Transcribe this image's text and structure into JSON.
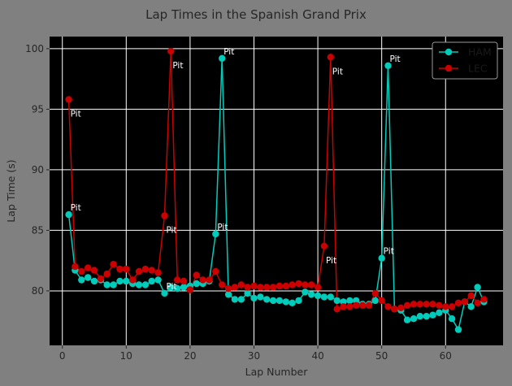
{
  "chart_data": {
    "type": "line",
    "title": "Lap Times in the Spanish Grand Prix",
    "xlabel": "Lap Number",
    "ylabel": "Lap Time (s)",
    "xlim": [
      -2,
      69
    ],
    "ylim": [
      75.5,
      101
    ],
    "xticks": [
      0,
      10,
      20,
      30,
      40,
      50,
      60
    ],
    "yticks": [
      80,
      85,
      90,
      95,
      100
    ],
    "grid": true,
    "legend_position": "top-right",
    "annotation_text": "Pit",
    "series": [
      {
        "name": "HAM",
        "color": "#00ccbb",
        "x": [
          1,
          2,
          3,
          4,
          5,
          6,
          7,
          8,
          9,
          10,
          11,
          12,
          13,
          14,
          15,
          16,
          17,
          18,
          19,
          20,
          21,
          22,
          23,
          24,
          25,
          26,
          27,
          28,
          29,
          30,
          31,
          32,
          33,
          34,
          35,
          36,
          37,
          38,
          39,
          40,
          41,
          42,
          43,
          44,
          45,
          46,
          47,
          48,
          49,
          50,
          51,
          52,
          53,
          54,
          55,
          56,
          57,
          58,
          59,
          60,
          61,
          62,
          63,
          64,
          65,
          66
        ],
        "y": [
          86.3,
          81.7,
          80.9,
          81.1,
          80.8,
          80.9,
          80.5,
          80.5,
          80.8,
          80.8,
          80.6,
          80.5,
          80.5,
          80.8,
          80.9,
          79.8,
          80.3,
          80.2,
          80.3,
          80.4,
          80.6,
          80.6,
          80.8,
          84.7,
          99.2,
          79.7,
          79.3,
          79.3,
          79.8,
          79.4,
          79.5,
          79.3,
          79.2,
          79.2,
          79.1,
          79.0,
          79.2,
          79.9,
          79.7,
          79.6,
          79.5,
          79.5,
          79.2,
          79.1,
          79.2,
          79.2,
          78.9,
          78.9,
          79.2,
          82.7,
          98.6,
          78.5,
          78.4,
          77.6,
          77.7,
          77.9,
          77.9,
          78.0,
          78.2,
          78.4,
          77.7,
          76.8,
          79.1,
          78.7,
          80.3,
          79.1
        ],
        "pit_laps": [
          1,
          16,
          24,
          25,
          50,
          51
        ]
      },
      {
        "name": "LEC",
        "color": "#cc0000",
        "x": [
          1,
          2,
          3,
          4,
          5,
          6,
          7,
          8,
          9,
          10,
          11,
          12,
          13,
          14,
          15,
          16,
          17,
          18,
          19,
          20,
          21,
          22,
          23,
          24,
          25,
          26,
          27,
          28,
          29,
          30,
          31,
          32,
          33,
          34,
          35,
          36,
          37,
          38,
          39,
          40,
          41,
          42,
          43,
          44,
          45,
          46,
          47,
          48,
          49,
          50,
          51,
          52,
          53,
          54,
          55,
          56,
          57,
          58,
          59,
          60,
          61,
          62,
          63,
          64,
          65,
          66
        ],
        "y": [
          95.8,
          82.0,
          81.6,
          81.9,
          81.7,
          81.0,
          81.4,
          82.2,
          81.8,
          81.8,
          80.9,
          81.6,
          81.8,
          81.7,
          81.5,
          86.2,
          99.8,
          80.9,
          80.8,
          80.1,
          81.3,
          80.9,
          80.9,
          81.6,
          80.5,
          80.2,
          80.3,
          80.5,
          80.3,
          80.4,
          80.3,
          80.3,
          80.3,
          80.4,
          80.4,
          80.5,
          80.6,
          80.5,
          80.5,
          80.3,
          83.7,
          99.3,
          78.5,
          78.7,
          78.7,
          78.8,
          78.8,
          78.8,
          79.8,
          79.2,
          78.7,
          78.5,
          78.6,
          78.8,
          78.9,
          78.9,
          78.9,
          78.9,
          78.8,
          78.7,
          78.7,
          79.0,
          79.1,
          79.6,
          79.0,
          79.3
        ],
        "pit_laps": [
          1,
          16,
          17,
          41,
          42
        ]
      }
    ]
  }
}
